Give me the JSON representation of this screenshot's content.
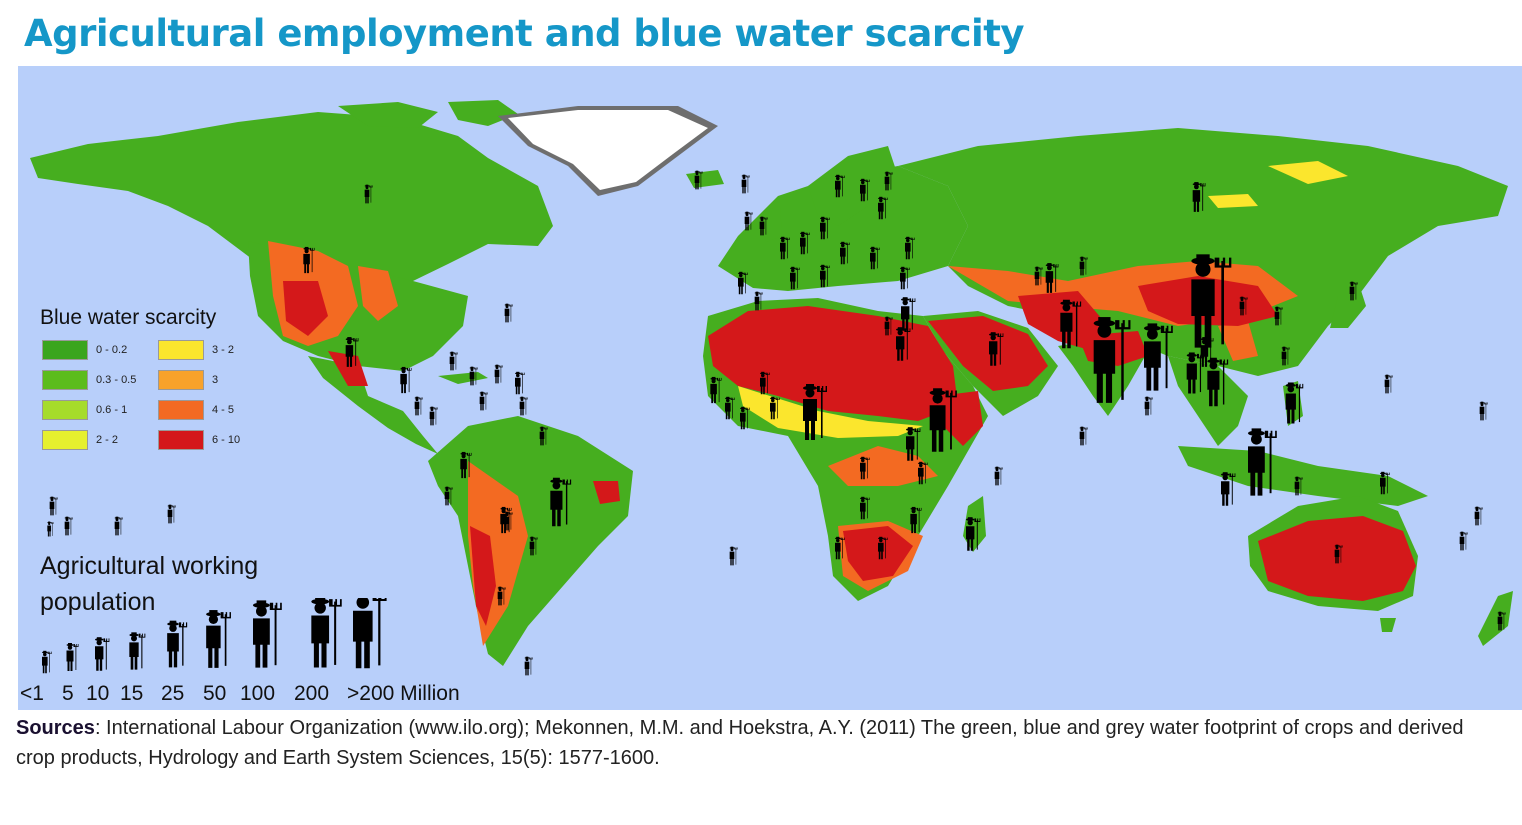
{
  "title": "Agricultural employment and blue water scarcity",
  "legend": {
    "title": "Blue water scarcity",
    "items": [
      {
        "label": "0 - 0.2",
        "color": "#3aa51e"
      },
      {
        "label": "0.3 - 0.5",
        "color": "#5cbc1c"
      },
      {
        "label": "0.6 - 1",
        "color": "#a6dc2b"
      },
      {
        "label": "2 - 2",
        "color": "#e6f02e"
      },
      {
        "label": "3 - 2",
        "color": "#fbe62d"
      },
      {
        "label": "3",
        "color": "#f8a22b"
      },
      {
        "label": "4 - 5",
        "color": "#f36a22"
      },
      {
        "label": "6 - 10",
        "color": "#d4181a"
      }
    ]
  },
  "population_legend": {
    "title": "Agricultural working population",
    "labels": [
      "<1",
      "5",
      "10",
      "15",
      "25",
      "50",
      "100",
      "200",
      ">200 Million"
    ]
  },
  "sources": {
    "label": "Sources",
    "text": ": International Labour Organization (www.ilo.org); Mekonnen, M.M. and Hoekstra, A.Y. (2011) The green, blue and grey water footprint of crops and derived crop products, Hydrology and Earth System Sciences, 15(5): 1577-1600."
  },
  "colors": {
    "ocean": "#b8cffa",
    "title": "#1597c8",
    "ice": "#ffffff"
  }
}
